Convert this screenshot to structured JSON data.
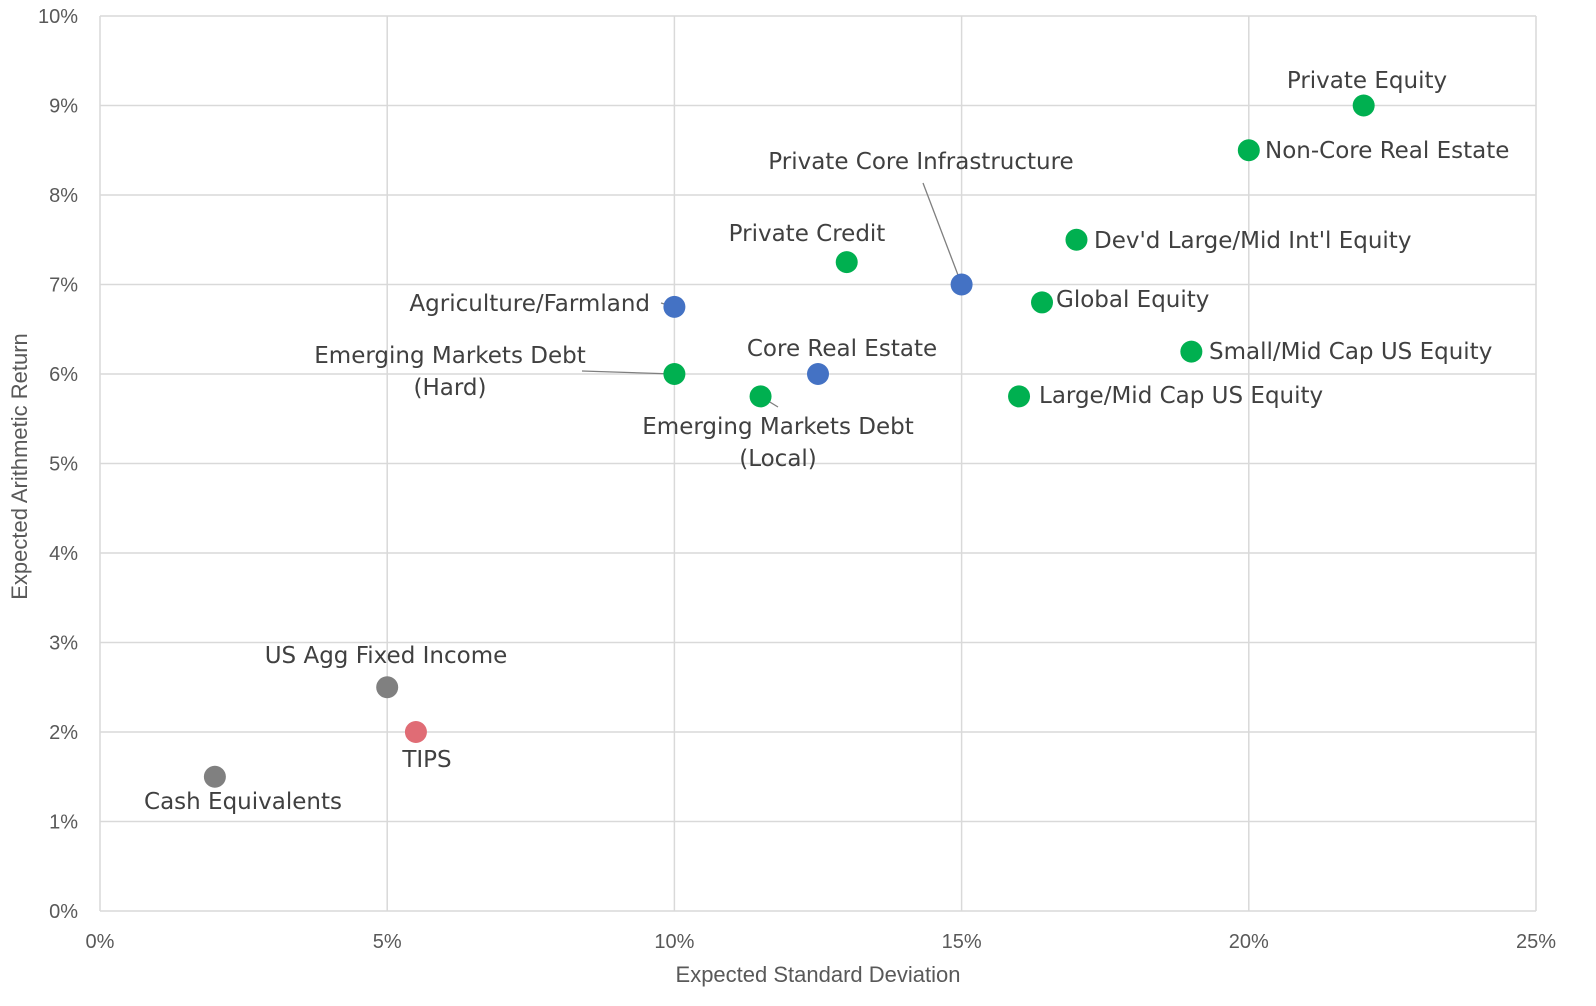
{
  "chart_data": {
    "type": "scatter",
    "xlabel": "Expected Standard Deviation",
    "ylabel": "Expected Arithmetic Return",
    "xlim": [
      0,
      25
    ],
    "ylim": [
      0,
      10
    ],
    "x_ticks": [
      0,
      5,
      10,
      15,
      20,
      25
    ],
    "y_ticks": [
      0,
      1,
      2,
      3,
      4,
      5,
      6,
      7,
      8,
      9,
      10
    ],
    "x_tick_labels": [
      "0%",
      "5%",
      "10%",
      "15%",
      "20%",
      "25%"
    ],
    "y_tick_labels": [
      "0%",
      "1%",
      "2%",
      "3%",
      "4%",
      "5%",
      "6%",
      "7%",
      "8%",
      "9%",
      "10%"
    ],
    "grid": true,
    "legend": "none",
    "colors": {
      "green": "#00b050",
      "blue": "#4472c4",
      "gray": "#808080",
      "red": "#e06c75"
    },
    "points": [
      {
        "label": [
          "Private Equity"
        ],
        "x": 22.0,
        "y": 9.0,
        "color": "green"
      },
      {
        "label": [
          "Non-Core Real Estate"
        ],
        "x": 20.0,
        "y": 8.5,
        "color": "green"
      },
      {
        "label": [
          "Private Core Infrastructure"
        ],
        "x": 15.0,
        "y": 7.0,
        "color": "blue"
      },
      {
        "label": [
          "Dev'd Large/Mid Int'l Equity"
        ],
        "x": 17.0,
        "y": 7.5,
        "color": "green"
      },
      {
        "label": [
          "Private Credit"
        ],
        "x": 13.0,
        "y": 7.25,
        "color": "green"
      },
      {
        "label": [
          "Agriculture/Farmland"
        ],
        "x": 10.0,
        "y": 6.75,
        "color": "blue"
      },
      {
        "label": [
          "Global Equity"
        ],
        "x": 16.4,
        "y": 6.8,
        "color": "green"
      },
      {
        "label": [
          "Emerging Markets Debt",
          "(Hard)"
        ],
        "x": 10.0,
        "y": 6.0,
        "color": "green"
      },
      {
        "label": [
          "Core Real Estate"
        ],
        "x": 12.5,
        "y": 6.0,
        "color": "blue"
      },
      {
        "label": [
          "Small/Mid Cap US Equity"
        ],
        "x": 19.0,
        "y": 6.25,
        "color": "green"
      },
      {
        "label": [
          "Emerging Markets Debt",
          "(Local)"
        ],
        "x": 11.5,
        "y": 5.75,
        "color": "green"
      },
      {
        "label": [
          "Large/Mid Cap US Equity"
        ],
        "x": 16.0,
        "y": 5.75,
        "color": "green"
      },
      {
        "label": [
          "US Agg Fixed Income"
        ],
        "x": 5.0,
        "y": 2.5,
        "color": "gray"
      },
      {
        "label": [
          "TIPS"
        ],
        "x": 5.5,
        "y": 2.0,
        "color": "red"
      },
      {
        "label": [
          "Cash Equivalents"
        ],
        "x": 2.0,
        "y": 1.5,
        "color": "gray"
      }
    ]
  }
}
